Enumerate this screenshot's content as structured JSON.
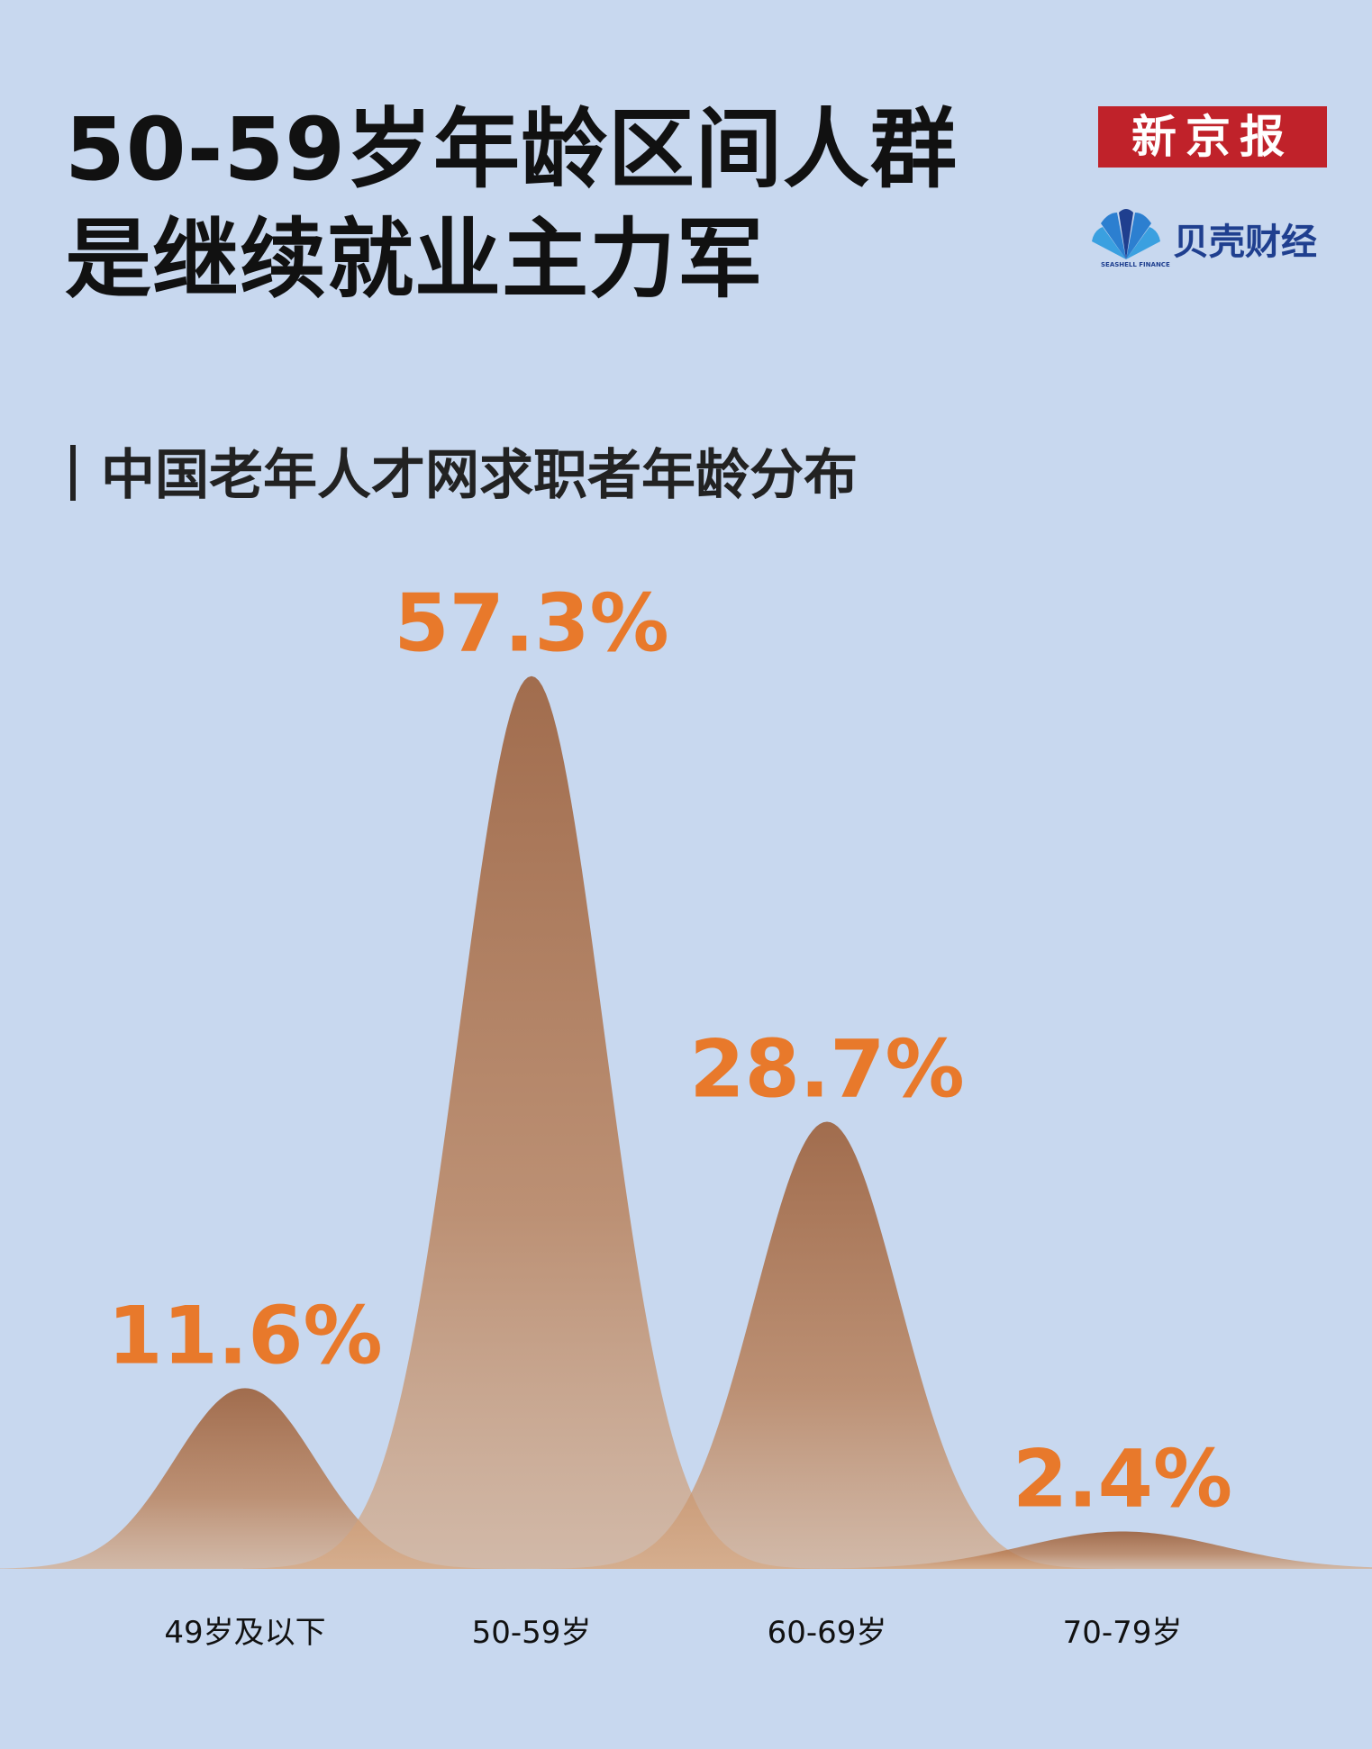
{
  "header": {
    "title_line1": "50-59岁年龄区间人群",
    "title_line2": "是继续就业主力军"
  },
  "logos": {
    "newspaper": "新京报",
    "seashell": "贝壳财经",
    "seashell_en": "SEASHELL FINANCE"
  },
  "chart_data": {
    "type": "area",
    "title": "中国老年人才网求职者年龄分布",
    "categories": [
      "49岁及以下",
      "50-59岁",
      "60-69岁",
      "70-79岁"
    ],
    "values": [
      11.6,
      57.3,
      28.7,
      2.4
    ],
    "data_labels": [
      "11.6%",
      "57.3%",
      "28.7%",
      "2.4%"
    ],
    "unit": "%",
    "shape": "bell curves",
    "grid": false,
    "colors": {
      "label": "#e8792b",
      "fill": "#a4623a",
      "background": "#c8d8ef"
    }
  }
}
